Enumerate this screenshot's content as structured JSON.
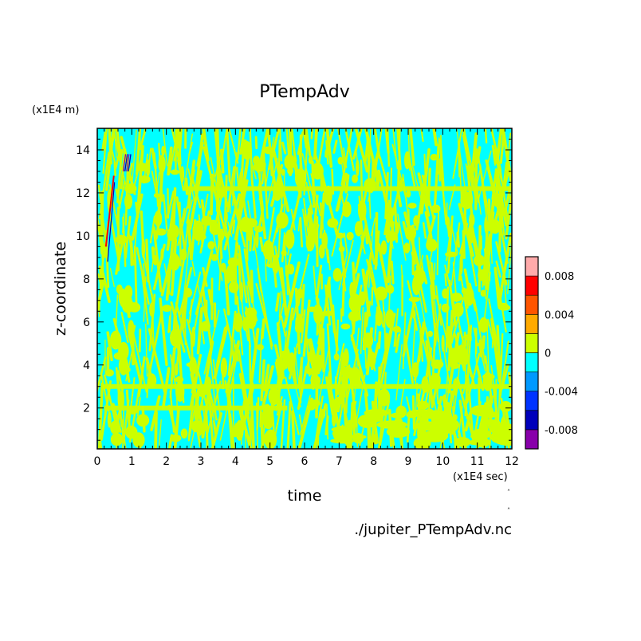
{
  "chart_data": {
    "type": "heatmap",
    "title": "PTempAdv",
    "xlabel": "time",
    "ylabel": "z-coordinate",
    "x_unit": "(x1E4 sec)",
    "y_unit": "(x1E4 m)",
    "source_label": "./jupiter_PTempAdv.nc",
    "xlim": [
      0,
      12
    ],
    "ylim": [
      0.1,
      15
    ],
    "x_ticks": [
      "0",
      "1",
      "2",
      "3",
      "4",
      "5",
      "6",
      "7",
      "8",
      "9",
      "10",
      "11",
      "12"
    ],
    "y_ticks": [
      "2",
      "4",
      "6",
      "8",
      "10",
      "12",
      "14"
    ],
    "y_tick_values": [
      2,
      4,
      6,
      8,
      10,
      12,
      14
    ],
    "colorbar": {
      "levels": [
        -0.01,
        -0.008,
        -0.006,
        -0.004,
        -0.002,
        0,
        0.002,
        0.004,
        0.006,
        0.008,
        0.01
      ],
      "colors": [
        "#8800aa",
        "#0000bb",
        "#0033ff",
        "#0099ff",
        "#00ffff",
        "#ccff00",
        "#ffaa00",
        "#ff5500",
        "#ff0000",
        "#ffaaaa"
      ],
      "tick_labels": [
        "-0.008",
        "-0.004",
        "0",
        "0.004",
        "0.008"
      ],
      "tick_values": [
        -0.008,
        -0.004,
        0,
        0.004,
        0.008
      ]
    },
    "features": {
      "dominant_level_range": [
        -0.002,
        0.002
      ],
      "horizontal_bands_z": [
        12.2,
        3.0,
        2.0
      ],
      "extremes_time_range": [
        0.2,
        0.9
      ]
    }
  }
}
